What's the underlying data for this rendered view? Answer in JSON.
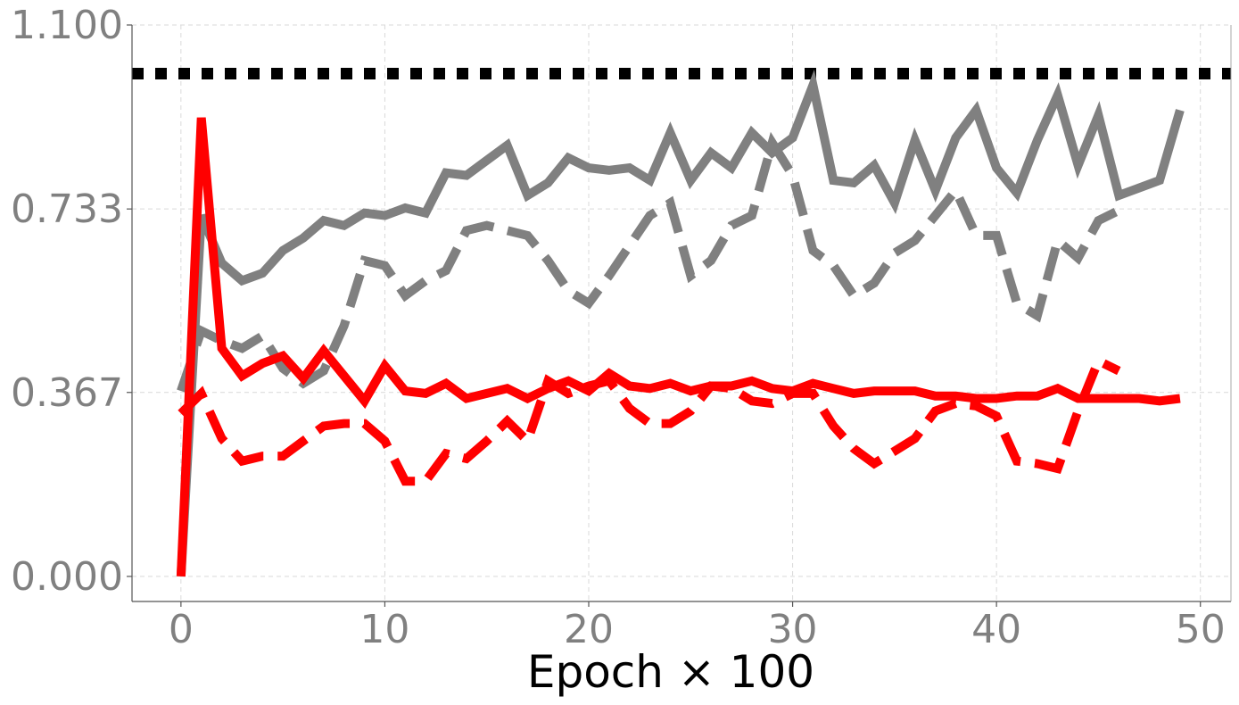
{
  "chart_data": {
    "type": "line",
    "title": "",
    "xlabel": "Epoch × 100",
    "ylabel": "",
    "xlim": [
      -2.4,
      51.5
    ],
    "ylim": [
      -0.05,
      1.1
    ],
    "x_ticks": [
      0,
      10,
      20,
      30,
      40,
      50
    ],
    "x_tick_labels": [
      "0",
      "10",
      "20",
      "30",
      "40",
      "50"
    ],
    "y_ticks": [
      0.0,
      0.367,
      0.733,
      1.1
    ],
    "y_tick_labels": [
      "0.000",
      "0.367",
      "0.733",
      "1.100"
    ],
    "grid": true,
    "legend": "none",
    "reference_line": {
      "y": 1.003,
      "color": "#000000",
      "style": "dotted"
    },
    "series": [
      {
        "color": "#808080",
        "style": "solid",
        "x": [
          0,
          1,
          2,
          3,
          4,
          5,
          6,
          7,
          8,
          9,
          10,
          11,
          12,
          13,
          14,
          15,
          16,
          17,
          18,
          19,
          20,
          21,
          22,
          23,
          24,
          25,
          26,
          27,
          28,
          29,
          30,
          31,
          32,
          33,
          34,
          35,
          36,
          37,
          38,
          39,
          40,
          41,
          42,
          43,
          44,
          45,
          46,
          47,
          48,
          49
        ],
        "y": [
          0.0,
          0.72,
          0.625,
          0.59,
          0.605,
          0.65,
          0.675,
          0.71,
          0.7,
          0.725,
          0.72,
          0.735,
          0.725,
          0.805,
          0.8,
          0.83,
          0.86,
          0.76,
          0.785,
          0.835,
          0.815,
          0.81,
          0.815,
          0.79,
          0.885,
          0.79,
          0.845,
          0.815,
          0.885,
          0.845,
          0.875,
          0.98,
          0.79,
          0.785,
          0.82,
          0.745,
          0.87,
          0.77,
          0.875,
          0.93,
          0.815,
          0.765,
          0.87,
          0.96,
          0.82,
          0.92,
          0.76,
          0.775,
          0.79,
          0.93
        ]
      },
      {
        "color": "#808080",
        "style": "dashed",
        "x": [
          0,
          1,
          2,
          3,
          4,
          5,
          6,
          7,
          8,
          9,
          10,
          11,
          12,
          13,
          14,
          15,
          16,
          17,
          18,
          19,
          20,
          21,
          22,
          23,
          24,
          25,
          26,
          27,
          28,
          29,
          30,
          31,
          32,
          33,
          34,
          35,
          36,
          37,
          38,
          39,
          40,
          41,
          42,
          43,
          44,
          45,
          46
        ],
        "y": [
          0.37,
          0.49,
          0.47,
          0.455,
          0.48,
          0.415,
          0.385,
          0.41,
          0.5,
          0.63,
          0.62,
          0.56,
          0.59,
          0.61,
          0.69,
          0.7,
          0.69,
          0.68,
          0.63,
          0.57,
          0.545,
          0.6,
          0.66,
          0.72,
          0.745,
          0.6,
          0.63,
          0.7,
          0.72,
          0.865,
          0.8,
          0.65,
          0.62,
          0.56,
          0.585,
          0.645,
          0.67,
          0.72,
          0.77,
          0.68,
          0.68,
          0.545,
          0.52,
          0.67,
          0.635,
          0.71,
          0.73
        ]
      },
      {
        "color": "#ff0000",
        "style": "solid",
        "x": [
          0,
          1,
          2,
          3,
          4,
          5,
          6,
          7,
          8,
          9,
          10,
          11,
          12,
          13,
          14,
          15,
          16,
          17,
          18,
          19,
          20,
          21,
          22,
          23,
          24,
          25,
          26,
          27,
          28,
          29,
          30,
          31,
          32,
          33,
          34,
          35,
          36,
          37,
          38,
          39,
          40,
          41,
          42,
          43,
          44,
          45,
          46,
          47,
          48,
          49
        ],
        "y": [
          0.0,
          0.915,
          0.455,
          0.4,
          0.425,
          0.44,
          0.395,
          0.45,
          0.4,
          0.35,
          0.42,
          0.37,
          0.365,
          0.385,
          0.355,
          0.365,
          0.375,
          0.355,
          0.375,
          0.39,
          0.37,
          0.405,
          0.38,
          0.375,
          0.385,
          0.37,
          0.38,
          0.38,
          0.39,
          0.375,
          0.37,
          0.385,
          0.375,
          0.365,
          0.37,
          0.37,
          0.37,
          0.36,
          0.36,
          0.355,
          0.355,
          0.36,
          0.36,
          0.375,
          0.355,
          0.355,
          0.355,
          0.355,
          0.35,
          0.355
        ]
      },
      {
        "color": "#ff0000",
        "style": "dashed",
        "x": [
          0,
          1,
          2,
          3,
          4,
          5,
          6,
          7,
          8,
          9,
          10,
          11,
          12,
          13,
          14,
          15,
          16,
          17,
          18,
          19,
          20,
          21,
          22,
          23,
          24,
          25,
          26,
          27,
          28,
          29,
          30,
          31,
          32,
          33,
          34,
          35,
          36,
          37,
          38,
          39,
          40,
          41,
          42,
          43,
          44,
          45,
          46
        ],
        "y": [
          0.325,
          0.365,
          0.275,
          0.23,
          0.24,
          0.24,
          0.27,
          0.3,
          0.305,
          0.305,
          0.27,
          0.19,
          0.19,
          0.245,
          0.235,
          0.27,
          0.31,
          0.27,
          0.39,
          0.365,
          0.38,
          0.39,
          0.335,
          0.305,
          0.305,
          0.33,
          0.38,
          0.375,
          0.35,
          0.345,
          0.365,
          0.365,
          0.3,
          0.255,
          0.225,
          0.25,
          0.275,
          0.33,
          0.345,
          0.34,
          0.32,
          0.23,
          0.225,
          0.215,
          0.33,
          0.43,
          0.41
        ]
      }
    ]
  }
}
